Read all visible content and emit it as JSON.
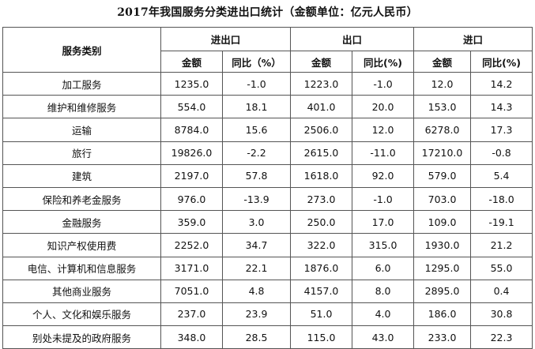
{
  "title": "2017年我国服务分类进出口统计（金额单位：亿元人民币）",
  "headers": {
    "category": "服务类别",
    "groups": [
      "进出口",
      "出口",
      "进口"
    ],
    "amount": "金额",
    "yoy": [
      "同比（%）",
      "同比(%)",
      "同比(%)"
    ]
  },
  "rows": [
    {
      "category": "加工服务",
      "values": [
        "1235.0",
        "-1.0",
        "1223.0",
        "-1.0",
        "12.0",
        "14.2"
      ]
    },
    {
      "category": "维护和维修服务",
      "values": [
        "554.0",
        "18.1",
        "401.0",
        "20.0",
        "153.0",
        "14.3"
      ]
    },
    {
      "category": "运输",
      "values": [
        "8784.0",
        "15.6",
        "2506.0",
        "12.0",
        "6278.0",
        "17.3"
      ]
    },
    {
      "category": "旅行",
      "values": [
        "19826.0",
        "-2.2",
        "2615.0",
        "-11.0",
        "17210.0",
        "-0.8"
      ]
    },
    {
      "category": "建筑",
      "values": [
        "2197.0",
        "57.8",
        "1618.0",
        "92.0",
        "579.0",
        "5.4"
      ]
    },
    {
      "category": "保险和养老金服务",
      "values": [
        "976.0",
        "-13.9",
        "273.0",
        "-1.0",
        "703.0",
        "-18.0"
      ]
    },
    {
      "category": "金融服务",
      "values": [
        "359.0",
        "3.0",
        "250.0",
        "17.0",
        "109.0",
        "-19.1"
      ]
    },
    {
      "category": "知识产权使用费",
      "values": [
        "2252.0",
        "34.7",
        "322.0",
        "315.0",
        "1930.0",
        "21.2"
      ]
    },
    {
      "category": "电信、计算机和信息服务",
      "values": [
        "3171.0",
        "22.1",
        "1876.0",
        "6.0",
        "1295.0",
        "55.0"
      ]
    },
    {
      "category": "其他商业服务",
      "values": [
        "7051.0",
        "4.8",
        "4157.0",
        "8.0",
        "2895.0",
        "0.4"
      ]
    },
    {
      "category": "个人、文化和娱乐服务",
      "values": [
        "237.0",
        "23.9",
        "51.0",
        "4.0",
        "186.0",
        "30.8"
      ]
    },
    {
      "category": "别处未提及的政府服务",
      "values": [
        "348.0",
        "28.5",
        "115.0",
        "43.0",
        "233.0",
        "22.3"
      ]
    }
  ]
}
